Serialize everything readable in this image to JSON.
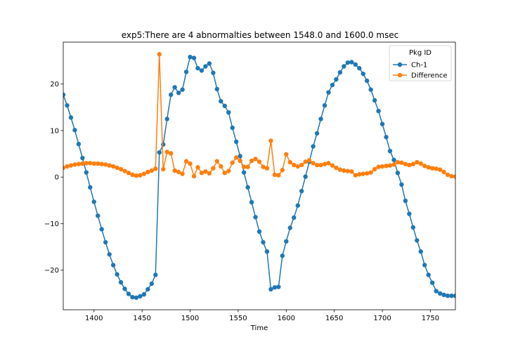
{
  "chart_data": {
    "type": "line",
    "title": "exp5:There are 4 abnormalties between 1548.0 and 1600.0 msec",
    "xlabel": "Time",
    "ylabel": "",
    "xlim": [
      1368,
      1776
    ],
    "ylim": [
      -28.5,
      29
    ],
    "xticks": [
      1400,
      1450,
      1500,
      1550,
      1600,
      1650,
      1700,
      1750
    ],
    "yticks": [
      -20,
      -10,
      0,
      10,
      20
    ],
    "grid": false,
    "legend": {
      "title": "Pkg ID",
      "position": "top-right"
    },
    "series": [
      {
        "name": "Ch-1",
        "color": "#1f77b4",
        "marker": "circle",
        "x": [
          1368,
          1372,
          1376,
          1380,
          1384,
          1388,
          1392,
          1396,
          1400,
          1404,
          1408,
          1412,
          1416,
          1420,
          1424,
          1428,
          1432,
          1436,
          1440,
          1444,
          1448,
          1452,
          1456,
          1460,
          1464,
          1468,
          1472,
          1476,
          1480,
          1484,
          1488,
          1492,
          1496,
          1500,
          1504,
          1508,
          1512,
          1516,
          1520,
          1524,
          1528,
          1532,
          1536,
          1540,
          1544,
          1548,
          1552,
          1556,
          1560,
          1564,
          1568,
          1572,
          1576,
          1580,
          1584,
          1588,
          1592,
          1596,
          1600,
          1604,
          1608,
          1612,
          1616,
          1620,
          1624,
          1628,
          1632,
          1636,
          1640,
          1644,
          1648,
          1652,
          1656,
          1660,
          1664,
          1668,
          1672,
          1676,
          1680,
          1684,
          1688,
          1692,
          1696,
          1700,
          1704,
          1708,
          1712,
          1716,
          1720,
          1724,
          1728,
          1732,
          1736,
          1740,
          1744,
          1748,
          1752,
          1756,
          1760,
          1764,
          1768,
          1772,
          1776
        ],
        "values": [
          17.7,
          15.4,
          12.8,
          10.1,
          7.1,
          4.1,
          1.0,
          -2.2,
          -5.3,
          -8.3,
          -11.2,
          -14.0,
          -16.6,
          -18.9,
          -20.9,
          -22.6,
          -24.0,
          -25.1,
          -25.8,
          -25.9,
          -25.6,
          -25.2,
          -24.1,
          -22.9,
          -21.0,
          5.3,
          7.0,
          12.5,
          17.7,
          19.3,
          18.1,
          18.8,
          22.6,
          25.8,
          25.6,
          23.4,
          22.9,
          23.8,
          24.4,
          22.4,
          18.9,
          16.3,
          15.3,
          13.9,
          10.6,
          7.6,
          4.5,
          1.0,
          -2.2,
          -5.4,
          -8.6,
          -11.7,
          -14.0,
          -16.0,
          -24.1,
          -23.7,
          -23.6,
          -16.9,
          -13.8,
          -10.9,
          -8.7,
          -6.1,
          -3.0,
          0.1,
          3.3,
          6.6,
          9.4,
          12.5,
          15.4,
          18.2,
          19.8,
          21.0,
          22.5,
          23.8,
          24.6,
          24.7,
          24.2,
          23.4,
          22.2,
          20.7,
          18.8,
          16.5,
          14.2,
          11.4,
          8.6,
          5.6,
          3.7,
          0.9,
          -1.6,
          -5.1,
          -7.9,
          -10.8,
          -13.6,
          -16.0,
          -18.9,
          -21.0,
          -22.7,
          -24.5,
          -25.0,
          -25.3,
          -25.5,
          -25.5,
          -25.5
        ]
      },
      {
        "name": "Difference",
        "color": "#ff7f0e",
        "marker": "circle",
        "x": [
          1368,
          1372,
          1376,
          1380,
          1384,
          1388,
          1392,
          1396,
          1400,
          1404,
          1408,
          1412,
          1416,
          1420,
          1424,
          1428,
          1432,
          1436,
          1440,
          1444,
          1448,
          1452,
          1456,
          1460,
          1464,
          1468,
          1472,
          1476,
          1480,
          1484,
          1488,
          1492,
          1496,
          1500,
          1504,
          1508,
          1512,
          1516,
          1520,
          1524,
          1528,
          1532,
          1536,
          1540,
          1544,
          1548,
          1552,
          1556,
          1560,
          1564,
          1568,
          1572,
          1576,
          1580,
          1584,
          1588,
          1592,
          1596,
          1600,
          1604,
          1608,
          1612,
          1616,
          1620,
          1624,
          1628,
          1632,
          1636,
          1640,
          1644,
          1648,
          1652,
          1656,
          1660,
          1664,
          1668,
          1672,
          1676,
          1680,
          1684,
          1688,
          1692,
          1696,
          1700,
          1704,
          1708,
          1712,
          1716,
          1720,
          1724,
          1728,
          1732,
          1736,
          1740,
          1744,
          1748,
          1752,
          1756,
          1760,
          1764,
          1768,
          1772,
          1776
        ],
        "values": [
          2.0,
          2.3,
          2.5,
          2.7,
          2.8,
          2.9,
          3.0,
          3.0,
          2.9,
          2.9,
          2.8,
          2.7,
          2.5,
          2.3,
          2.0,
          1.7,
          1.3,
          0.9,
          0.5,
          0.3,
          0.4,
          0.7,
          1.1,
          1.4,
          1.8,
          26.4,
          1.7,
          5.4,
          5.1,
          1.4,
          1.1,
          0.7,
          3.4,
          2.9,
          0.2,
          2.1,
          0.9,
          1.2,
          0.8,
          1.9,
          3.4,
          2.3,
          0.9,
          1.3,
          3.1,
          4.2,
          3.5,
          2.2,
          2.2,
          3.5,
          3.9,
          3.3,
          2.2,
          1.9,
          7.8,
          0.5,
          0.4,
          1.5,
          4.9,
          3.2,
          2.6,
          2.3,
          2.6,
          3.3,
          3.6,
          3.0,
          2.6,
          2.6,
          2.8,
          3.0,
          2.5,
          2.0,
          1.6,
          1.4,
          1.3,
          1.2,
          0.4,
          0.6,
          0.7,
          0.8,
          1.0,
          1.7,
          2.2,
          2.3,
          2.4,
          2.5,
          2.7,
          3.2,
          3.1,
          2.8,
          2.6,
          2.8,
          3.2,
          2.9,
          2.4,
          2.1,
          1.9,
          1.8,
          1.6,
          1.1,
          0.5,
          0.2,
          0.1
        ]
      }
    ]
  }
}
